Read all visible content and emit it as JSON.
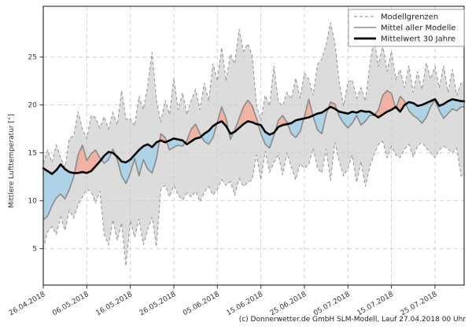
{
  "legend": {
    "items": [
      {
        "label": "Modellgrenzen",
        "style": "dashed-gray"
      },
      {
        "label": "Mittel aller Modelle",
        "style": "solid-gray"
      },
      {
        "label": "Mittelwert 30 Jahre",
        "style": "solid-black-thick"
      }
    ]
  },
  "y_axis": {
    "label": "Mittlere Lufttemperatur [°]",
    "ticks": [
      5,
      10,
      15,
      20,
      25
    ]
  },
  "x_axis": {
    "tick_labels": [
      "26.04.2018",
      "06.05.2018",
      "16.05.2018",
      "26.05.2018",
      "05.06.2018",
      "15.06.2018",
      "25.06.2018",
      "05.07.2018",
      "15.07.2018",
      "25.07.2018"
    ],
    "tick_days": [
      0,
      10,
      20,
      30,
      40,
      50,
      60,
      70,
      80,
      90
    ]
  },
  "footer": "(c) Donnerwetter.de GmbH SLM-Modell, Lauf 27.04.2018 00 Uhr",
  "colors": {
    "band": "#dcdcdc",
    "band_edge": "#9a9a9a",
    "below_mean_fill": "#aed3e6",
    "above_mean_fill": "#f0b2a2",
    "model_mean_line": "#8a8a8a",
    "mean30_line": "#000000",
    "grid": "#cbcbcb",
    "frame": "#333333"
  },
  "chart_data": {
    "type": "line",
    "title": "",
    "ylabel": "Mittlere Lufttemperatur [°]",
    "xlabel": "",
    "x_unit": "daily values, day 0 = 26.04.2018",
    "x_max": 96.7,
    "ylim": [
      1.2,
      30.3
    ],
    "grid": true,
    "legend_position": "top-right",
    "series": [
      {
        "id": "upper",
        "name": "Modellgrenzen (obere Grenze)",
        "style": "dashed gray",
        "values": [
          13.9,
          15.3,
          14.0,
          15.8,
          14.5,
          13.5,
          16.5,
          16.8,
          19.3,
          17.5,
          16.5,
          18.9,
          18.7,
          17.6,
          18.8,
          17.5,
          19.2,
          17.9,
          21.5,
          18.5,
          18.6,
          17.8,
          20.9,
          19.5,
          22.0,
          25.5,
          20.5,
          18.2,
          20.5,
          19.0,
          22.8,
          19.5,
          21.3,
          19.0,
          20.5,
          21.6,
          19.5,
          22.3,
          20.4,
          24.3,
          22.5,
          26.0,
          22.5,
          25.3,
          24.3,
          27.9,
          25.6,
          26.4,
          25.2,
          20.0,
          18.4,
          21.0,
          19.9,
          24.1,
          20.4,
          19.9,
          21.3,
          20.6,
          22.8,
          20.7,
          23.3,
          22.7,
          21.0,
          24.2,
          24.8,
          26.3,
          28.6,
          26.5,
          22.4,
          19.9,
          22.4,
          22.6,
          20.7,
          21.8,
          20.4,
          24.0,
          27.1,
          24.0,
          26.3,
          23.5,
          25.6,
          22.7,
          23.7,
          21.8,
          24.1,
          21.3,
          23.5,
          21.6,
          24.4,
          22.7,
          24.0,
          21.8,
          24.1,
          21.3,
          23.7,
          21.0,
          22.3
        ]
      },
      {
        "id": "lower",
        "name": "Modellgrenzen (untere Grenze)",
        "style": "dashed gray",
        "values": [
          5.0,
          6.8,
          7.3,
          6.5,
          8.3,
          6.9,
          9.0,
          8.2,
          9.6,
          10.4,
          11.2,
          11.0,
          9.8,
          11.0,
          6.5,
          5.4,
          8.0,
          5.9,
          7.7,
          3.2,
          7.9,
          6.2,
          8.1,
          5.4,
          7.0,
          8.3,
          5.2,
          11.2,
          11.6,
          10.4,
          11.6,
          10.6,
          10.1,
          10.8,
          10.4,
          11.0,
          9.9,
          10.9,
          11.5,
          10.6,
          11.2,
          12.2,
          11.6,
          12.0,
          10.6,
          12.3,
          11.5,
          11.9,
          12.2,
          14.8,
          12.2,
          15.2,
          13.0,
          14.0,
          14.8,
          12.7,
          15.0,
          13.5,
          12.2,
          13.9,
          13.4,
          13.8,
          15.5,
          13.4,
          12.9,
          15.4,
          12.1,
          16.1,
          14.1,
          12.6,
          13.4,
          14.8,
          11.9,
          14.1,
          11.5,
          13.5,
          14.8,
          15.9,
          16.2,
          14.5,
          15.7,
          14.8,
          14.5,
          15.4,
          15.9,
          14.6,
          15.7,
          16.1,
          15.5,
          15.0,
          14.5,
          15.3,
          15.7,
          15.4,
          15.0,
          15.5,
          12.6
        ]
      },
      {
        "id": "model_mean",
        "name": "Mittel aller Modelle",
        "style": "solid gray",
        "values": [
          8.0,
          8.4,
          9.5,
          10.3,
          10.7,
          10.2,
          11.2,
          12.5,
          14.8,
          15.8,
          14.2,
          14.9,
          15.3,
          14.5,
          13.9,
          14.3,
          15.4,
          14.3,
          12.6,
          11.8,
          12.9,
          14.4,
          12.6,
          14.3,
          13.3,
          12.9,
          14.4,
          17.0,
          16.6,
          15.3,
          15.6,
          15.8,
          15.7,
          16.3,
          17.5,
          18.0,
          17.0,
          16.2,
          15.9,
          16.6,
          18.2,
          19.8,
          18.6,
          16.4,
          17.4,
          18.6,
          19.8,
          20.5,
          19.9,
          18.6,
          17.0,
          15.9,
          15.5,
          16.8,
          18.4,
          18.9,
          18.2,
          17.0,
          16.6,
          17.2,
          18.8,
          20.6,
          18.8,
          17.4,
          17.0,
          19.0,
          20.3,
          20.1,
          18.8,
          18.1,
          17.6,
          18.1,
          18.9,
          17.9,
          18.3,
          18.9,
          18.9,
          19.5,
          21.0,
          21.5,
          21.2,
          19.6,
          20.9,
          20.4,
          19.4,
          18.9,
          18.6,
          18.1,
          18.7,
          19.8,
          20.5,
          19.4,
          18.6,
          19.1,
          19.6,
          19.4,
          19.8
        ]
      },
      {
        "id": "mean30",
        "name": "Mittelwert 30 Jahre",
        "style": "solid black thick",
        "values": [
          13.4,
          13.1,
          12.8,
          13.2,
          13.8,
          13.3,
          13.0,
          12.9,
          12.9,
          13.0,
          12.9,
          13.1,
          13.6,
          14.1,
          14.7,
          15.1,
          15.0,
          14.6,
          14.1,
          14.0,
          14.3,
          14.8,
          15.3,
          15.7,
          15.9,
          15.6,
          16.1,
          16.3,
          16.1,
          16.3,
          16.5,
          16.4,
          16.3,
          15.9,
          16.2,
          16.5,
          16.6,
          17.0,
          17.3,
          17.8,
          18.1,
          18.3,
          17.8,
          17.0,
          17.2,
          17.6,
          18.0,
          18.3,
          18.2,
          18.0,
          17.9,
          17.2,
          16.9,
          17.1,
          17.7,
          17.9,
          18.0,
          18.1,
          18.4,
          18.5,
          18.6,
          18.7,
          18.9,
          19.1,
          19.2,
          19.5,
          19.8,
          19.6,
          19.3,
          19.2,
          19.1,
          19.3,
          19.2,
          19.4,
          19.3,
          19.3,
          19.0,
          18.7,
          19.0,
          19.3,
          19.5,
          19.8,
          19.3,
          20.0,
          20.3,
          20.2,
          19.9,
          20.0,
          20.2,
          20.4,
          20.6,
          19.9,
          20.1,
          20.4,
          20.6,
          20.5,
          20.4
        ]
      }
    ],
    "fills": [
      {
        "between": [
          "upper",
          "lower"
        ],
        "color_key": "band",
        "meaning": "model spread"
      },
      {
        "between": [
          "mean30",
          "model_mean"
        ],
        "where": "model_mean<mean30",
        "color_key": "below_mean_fill",
        "meaning": "model mean below 30y mean"
      },
      {
        "between": [
          "model_mean",
          "mean30"
        ],
        "where": "model_mean>mean30",
        "color_key": "above_mean_fill",
        "meaning": "model mean above 30y mean"
      }
    ]
  }
}
